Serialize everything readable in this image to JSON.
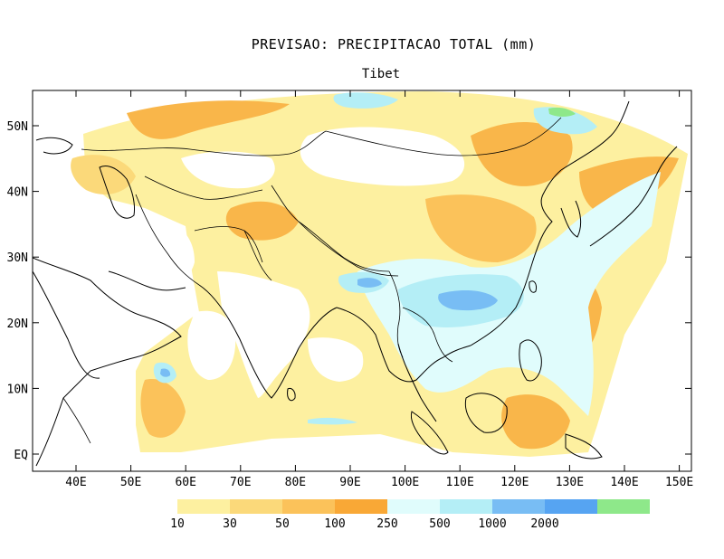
{
  "title": "PREVISAO: PRECIPITACAO TOTAL (mm)",
  "subtitle": "Tibet",
  "axes": {
    "x_ticks": [
      "40E",
      "50E",
      "60E",
      "70E",
      "80E",
      "90E",
      "100E",
      "110E",
      "120E",
      "130E",
      "140E",
      "150E"
    ],
    "y_ticks": [
      "50N",
      "40N",
      "30N",
      "20N",
      "10N",
      "EQ"
    ]
  },
  "colorbar": {
    "levels": [
      "10",
      "30",
      "50",
      "100",
      "250",
      "500",
      "1000",
      "2000"
    ],
    "colors": [
      "#fdf0a0",
      "#fbd97a",
      "#fbc25a",
      "#f9a836",
      "#e0fcfc",
      "#b4eef6",
      "#78bdf4",
      "#56a4f2",
      "#8ee88a"
    ]
  },
  "map": {
    "region": "Asia",
    "field": "precipitation total",
    "colors": {
      "dry": "#ffffff",
      "light": "#fdf0a0",
      "moderate": "#fbd97a",
      "heavy": "#f9b64a",
      "wet": "#e0fcfc",
      "very_wet": "#b4eef6",
      "extreme": "#78bdf4"
    }
  }
}
